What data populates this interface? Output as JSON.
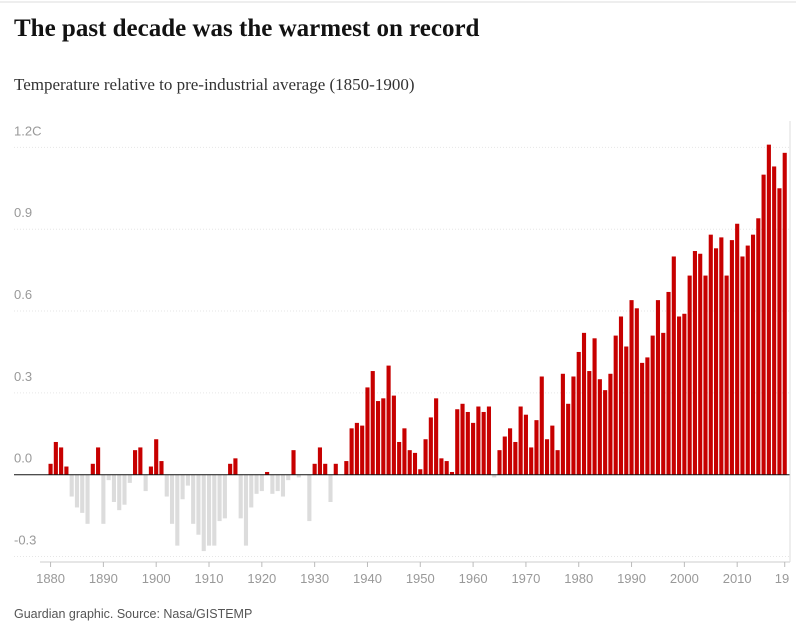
{
  "chart_data": {
    "type": "bar",
    "title": "The past decade was the warmest on record",
    "subtitle": "Temperature relative to pre-industrial average (1850-1900)",
    "source": "Guardian graphic. Source: Nasa/GISTEMP",
    "x": [
      1880,
      1881,
      1882,
      1883,
      1884,
      1885,
      1886,
      1887,
      1888,
      1889,
      1890,
      1891,
      1892,
      1893,
      1894,
      1895,
      1896,
      1897,
      1898,
      1899,
      1900,
      1901,
      1902,
      1903,
      1904,
      1905,
      1906,
      1907,
      1908,
      1909,
      1910,
      1911,
      1912,
      1913,
      1914,
      1915,
      1916,
      1917,
      1918,
      1919,
      1920,
      1921,
      1922,
      1923,
      1924,
      1925,
      1926,
      1927,
      1928,
      1929,
      1930,
      1931,
      1932,
      1933,
      1934,
      1935,
      1936,
      1937,
      1938,
      1939,
      1940,
      1941,
      1942,
      1943,
      1944,
      1945,
      1946,
      1947,
      1948,
      1949,
      1950,
      1951,
      1952,
      1953,
      1954,
      1955,
      1956,
      1957,
      1958,
      1959,
      1960,
      1961,
      1962,
      1963,
      1964,
      1965,
      1966,
      1967,
      1968,
      1969,
      1970,
      1971,
      1972,
      1973,
      1974,
      1975,
      1976,
      1977,
      1978,
      1979,
      1980,
      1981,
      1982,
      1983,
      1984,
      1985,
      1986,
      1987,
      1988,
      1989,
      1990,
      1991,
      1992,
      1993,
      1994,
      1995,
      1996,
      1997,
      1998,
      1999,
      2000,
      2001,
      2002,
      2003,
      2004,
      2005,
      2006,
      2007,
      2008,
      2009,
      2010,
      2011,
      2012,
      2013,
      2014,
      2015,
      2016,
      2017,
      2018,
      2019
    ],
    "values": [
      0.04,
      0.12,
      0.1,
      0.03,
      -0.08,
      -0.12,
      -0.14,
      -0.18,
      0.04,
      0.1,
      -0.18,
      -0.02,
      -0.1,
      -0.13,
      -0.11,
      -0.03,
      0.09,
      0.1,
      -0.06,
      0.03,
      0.13,
      0.05,
      -0.08,
      -0.18,
      -0.26,
      -0.09,
      -0.04,
      -0.18,
      -0.22,
      -0.28,
      -0.26,
      -0.26,
      -0.17,
      -0.16,
      0.04,
      0.06,
      -0.16,
      -0.26,
      -0.12,
      -0.07,
      -0.06,
      0.01,
      -0.07,
      -0.06,
      -0.08,
      -0.02,
      0.09,
      -0.01,
      0.0,
      -0.17,
      0.04,
      0.1,
      0.04,
      -0.1,
      0.04,
      0.0,
      0.05,
      0.17,
      0.19,
      0.18,
      0.32,
      0.38,
      0.27,
      0.28,
      0.4,
      0.29,
      0.12,
      0.17,
      0.09,
      0.08,
      0.02,
      0.13,
      0.21,
      0.28,
      0.06,
      0.05,
      0.01,
      0.24,
      0.26,
      0.23,
      0.19,
      0.25,
      0.23,
      0.25,
      -0.01,
      0.09,
      0.14,
      0.17,
      0.12,
      0.25,
      0.22,
      0.1,
      0.2,
      0.36,
      0.13,
      0.18,
      0.09,
      0.37,
      0.26,
      0.36,
      0.45,
      0.52,
      0.38,
      0.5,
      0.35,
      0.31,
      0.37,
      0.51,
      0.58,
      0.47,
      0.64,
      0.61,
      0.41,
      0.43,
      0.51,
      0.64,
      0.52,
      0.67,
      0.8,
      0.58,
      0.59,
      0.73,
      0.82,
      0.81,
      0.73,
      0.88,
      0.83,
      0.87,
      0.73,
      0.86,
      0.92,
      0.8,
      0.84,
      0.88,
      0.94,
      1.1,
      1.21,
      1.13,
      1.05,
      1.18
    ],
    "color": "#c70000",
    "negative_color": "#dcdcdc",
    "xlim": [
      1878,
      2020
    ],
    "xticks": [
      1880,
      1890,
      1900,
      1910,
      1920,
      1930,
      1940,
      1950,
      1960,
      1970,
      1980,
      1990,
      2000,
      2010,
      {
        "value": 2019,
        "label": "19"
      }
    ],
    "ylim": [
      -0.32,
      1.26
    ],
    "yticks": [
      {
        "value": -0.3,
        "label": "-0.3"
      },
      {
        "value": 0,
        "label": "0.0"
      },
      0.3,
      0.6,
      0.9,
      {
        "value": 1.2,
        "label": "1.2C"
      }
    ],
    "grid": true
  }
}
